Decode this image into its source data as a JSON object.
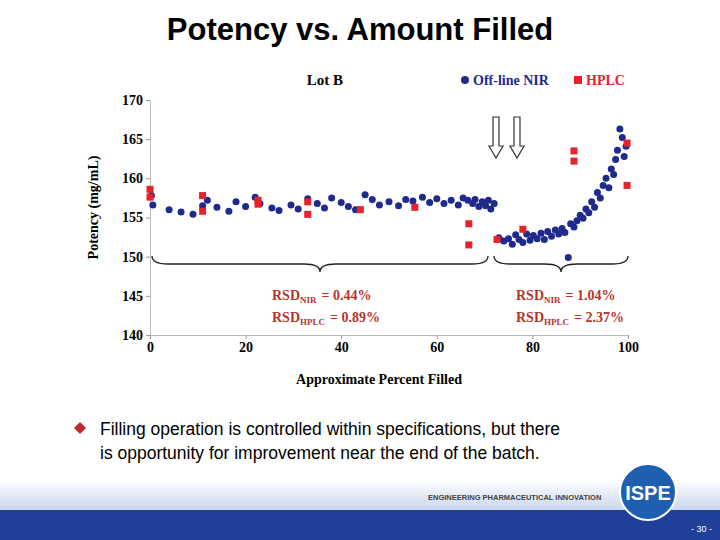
{
  "chart_data": {
    "type": "scatter",
    "title": "Lot B",
    "x_label": "Approximate Percent Filled",
    "y_label": "Potency (mg/mL)",
    "xlim": [
      0,
      100
    ],
    "xticks": [
      0,
      20,
      40,
      60,
      80,
      100
    ],
    "ylim": [
      140,
      170
    ],
    "yticks": [
      140,
      145,
      150,
      155,
      160,
      165,
      170
    ],
    "grid": false,
    "legend": "top",
    "series": [
      {
        "name": "Off-line NIR",
        "color": "#1f2a8c",
        "marker": "circle",
        "x": [
          0.3,
          0.6,
          4,
          6.5,
          9,
          11,
          12,
          14,
          16.5,
          18,
          20,
          22,
          23,
          25.5,
          27,
          29.5,
          31,
          33,
          35,
          36.5,
          38,
          40,
          41.5,
          43,
          45,
          46.5,
          48,
          50,
          52,
          53.5,
          55,
          57,
          58.5,
          60,
          61.5,
          63,
          64.5,
          65.5,
          66.5,
          67.5,
          68,
          68.8,
          69.5,
          70.2,
          70.8,
          71.3,
          72,
          73,
          74,
          75,
          75.8,
          76.5,
          77.2,
          78,
          78.8,
          79.5,
          80.2,
          81,
          81.8,
          82.5,
          83.2,
          84,
          84.8,
          85.5,
          86.2,
          86.8,
          87.5,
          88,
          88.7,
          89.3,
          90,
          90.6,
          91.2,
          91.8,
          92.4,
          93,
          93.6,
          94.2,
          94.8,
          95.4,
          96,
          96.5,
          97,
          97.4,
          97.8,
          98.3,
          98.8,
          99.2,
          99.6
        ],
        "values": [
          157.8,
          156.6,
          156.0,
          155.7,
          155.4,
          156.5,
          157.2,
          156.3,
          155.8,
          157.0,
          156.4,
          157.6,
          156.8,
          156.2,
          155.9,
          156.6,
          156.1,
          157.4,
          156.8,
          156.2,
          157.5,
          156.9,
          156.4,
          156.0,
          157.9,
          157.3,
          156.6,
          157.0,
          156.5,
          157.3,
          157.1,
          157.6,
          156.9,
          157.4,
          156.8,
          157.2,
          156.6,
          157.5,
          157.2,
          156.8,
          157.3,
          156.4,
          157.0,
          156.5,
          157.2,
          156.1,
          156.8,
          152.4,
          152.0,
          152.3,
          151.6,
          152.8,
          152.2,
          151.8,
          152.9,
          152.1,
          152.7,
          152.3,
          153.0,
          152.2,
          153.2,
          152.6,
          153.4,
          152.9,
          153.6,
          153.1,
          149.9,
          154.2,
          153.8,
          154.6,
          155.3,
          154.9,
          156.1,
          155.6,
          157.0,
          156.3,
          158.2,
          157.5,
          159.1,
          160.0,
          158.8,
          161.2,
          160.5,
          162.4,
          163.6,
          166.3,
          165.2,
          162.8,
          164.1
        ]
      },
      {
        "name": "HPLC",
        "color": "#e8212b",
        "marker": "square",
        "x": [
          0,
          0,
          11,
          11,
          22.6,
          22.6,
          33,
          33,
          44,
          55.4,
          66.7,
          66.7,
          72.6,
          78,
          88.7,
          88.7,
          99.8,
          99.8
        ],
        "values": [
          158.6,
          157.6,
          157.8,
          155.8,
          157.2,
          156.7,
          155.4,
          157.0,
          156.0,
          156.3,
          154.2,
          151.5,
          152.2,
          153.5,
          163.5,
          162.2,
          164.5,
          159.1
        ]
      }
    ],
    "annotations": [
      {
        "label": "RSD",
        "sub": "NIR",
        "text": "= 0.44%"
      },
      {
        "label": "RSD",
        "sub": "HPLC",
        "text": "= 0.89%"
      },
      {
        "label": "RSD",
        "sub": "NIR",
        "text": "= 1.04%"
      },
      {
        "label": "RSD",
        "sub": "HPLC",
        "text": "= 2.37%"
      }
    ]
  },
  "slide": {
    "title": "Potency vs. Amount Filled",
    "bullet": [
      "Filling operation is controlled within specifications, but there",
      "is opportunity for improvement near the end of the batch."
    ],
    "tagline": "ENGINEERING PHARMACEUTICAL INNOVATION",
    "logo": "ISPE",
    "page": "- 30 -"
  }
}
